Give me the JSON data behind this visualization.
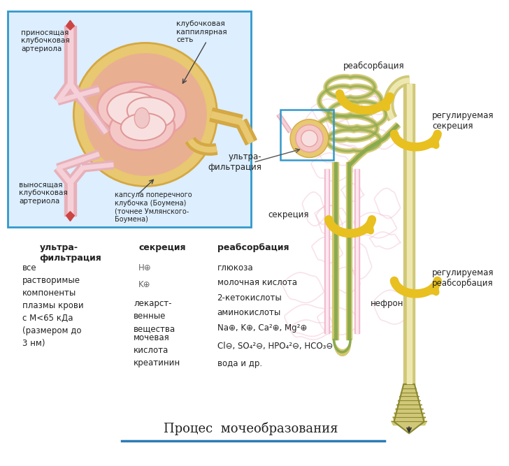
{
  "bg_color": "#ffffff",
  "title": "Процес  мочеобразования",
  "title_underline_color": "#2c7bb6",
  "box_color": "#3399cc",
  "box_fill": "#ddeeff",
  "glom_gold": "#d4a843",
  "glom_gold_light": "#e8c870",
  "glom_peach": "#e8b090",
  "glom_pink": "#e8a0a0",
  "glom_pink_light": "#f5c8c8",
  "art_pink": "#e8b0b8",
  "art_pink_light": "#f5d0d8",
  "art_dark": "#c86880",
  "art_red": "#cc4444",
  "tubule_yellow": "#d4c870",
  "tubule_yellow_light": "#f0e8a0",
  "tubule_green": "#8aaa50",
  "nephron_pink": "#f0b8cc",
  "nephron_pink_bg": "#f8d8e8",
  "arrow_yellow": "#e8c020",
  "arrow_yellow_dark": "#c0960a",
  "collect_yellow": "#d0c878",
  "collect_yellow_light": "#eee8b0",
  "collect_dark": "#8a8830",
  "text_dark": "#222222",
  "text_gray": "#666666",
  "labels": {
    "afferent": "приносящая\nклубочковая\nартериола",
    "capillary_net": "клубочковая\nкаппилярная\nсеть",
    "efferent": "выносящая\nклубочковая\nартериола",
    "capsule": "капсула поперечного\nклубочка (Боумена)\n(точнее Умлянского-\nБоумена)",
    "reabsorption_top": "реабсорбация",
    "secretion_regulated": "регулируемая\nсекреция",
    "ultrafiltration": "ультра-\nфильтрация",
    "secretion": "секреция",
    "nephron": "нефрон",
    "reabsorption_regulated": "регулируемая\nреабсорбация",
    "h1": "ультра-\nфильтрация",
    "h2": "секреция",
    "h3": "реабсорбация",
    "c1": "все\nрастворимые\nкомпоненты\nплазмы крови\nс M<65 кДа\n(размером до\n3 нм)",
    "c2a": "H⊕",
    "c2b": "K⊕",
    "c2c": "лекарст-\nвенные\nвещества",
    "c2d": "мочевая\nкислота",
    "c2e": "креатинин",
    "c3a": "глюкоза",
    "c3b": "молочная кислота",
    "c3c": "2-кетокислоты",
    "c3d": "аминокислоты",
    "c3e": "Na⊕, K⊕, Ca²⊕, Mg²⊕",
    "c3f": "Cl⊖, SO₄²⊖, HPO₄²⊖, HCO₃⊖",
    "c3g": "вода и др."
  }
}
